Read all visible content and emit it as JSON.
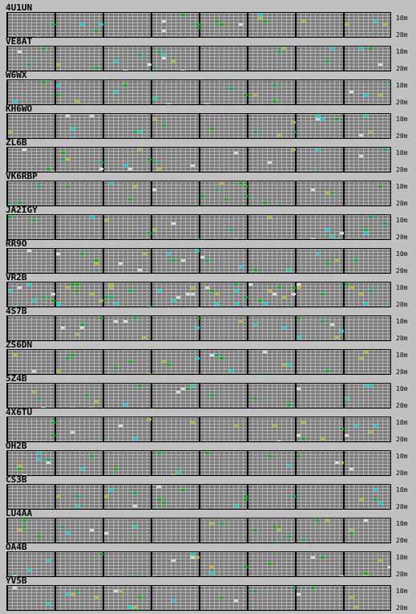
{
  "bands": {
    "top": "10m",
    "bottom": "20m"
  },
  "colors": {
    "grid_bg": "#7a7a7a",
    "grid_line": "#b4b4b4",
    "divider": "#000000",
    "signal_green": "#22aa22",
    "signal_yellow": "#b8b844",
    "signal_cyan": "#22cccc",
    "signal_white": "#dddddd"
  },
  "stations": [
    {
      "call": "4U1UN"
    },
    {
      "call": "VE8AT"
    },
    {
      "call": "W6WX"
    },
    {
      "call": "KH6WO"
    },
    {
      "call": "ZL6B"
    },
    {
      "call": "VK6RBP"
    },
    {
      "call": "JA2IGY"
    },
    {
      "call": "RR9O"
    },
    {
      "call": "VR2B"
    },
    {
      "call": "4S7B"
    },
    {
      "call": "ZS6DN"
    },
    {
      "call": "5Z4B"
    },
    {
      "call": "4X6TU"
    },
    {
      "call": "OH2B"
    },
    {
      "call": "CS3B"
    },
    {
      "call": "LU4AA"
    },
    {
      "call": "OA4B"
    },
    {
      "call": "YV5B"
    }
  ]
}
